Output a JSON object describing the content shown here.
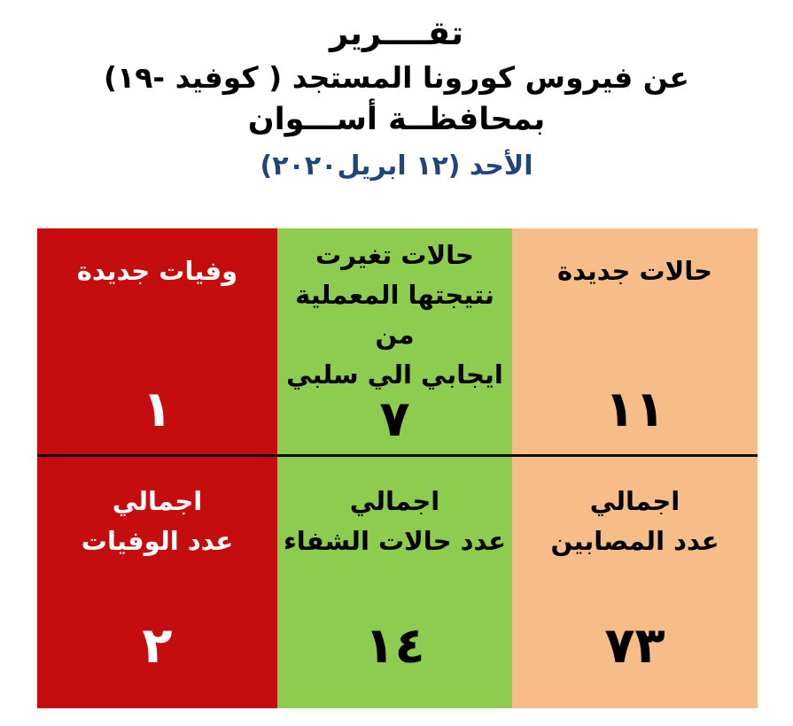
{
  "title": {
    "line1": "تقــــرير",
    "line2": "عن فيروس كورونا المستجد ( كوفيد -١٩)",
    "line3": "بمحافظــة أســـوان",
    "date_line": "الأحد  (١٢ ابريل٢٠٢٠)"
  },
  "colors": {
    "red": "#C50D10",
    "green": "#8ECC4F",
    "peach": "#F6BD88",
    "dateblue": "#20457C",
    "divider": "#0B0B0B",
    "text_on_red": "#FFFFFF"
  },
  "table": {
    "top_row": [
      {
        "key": "new-cases",
        "label": "حالات جديدة",
        "value_arabic": "١١",
        "value": 11,
        "bg": "peach"
      },
      {
        "key": "lab-result-changed",
        "label": "حالات تغيرت\nنتيجتها المعملية من\nايجابي الي سلبي",
        "value_arabic": "٧",
        "value": 7,
        "bg": "green"
      },
      {
        "key": "new-deaths",
        "label": "وفيات جديدة",
        "value_arabic": "١",
        "value": 1,
        "bg": "red"
      }
    ],
    "bottom_row": [
      {
        "key": "total-infected",
        "label": "اجمالي\nعدد المصابين",
        "value_arabic": "٧٣",
        "value": 73,
        "bg": "peach"
      },
      {
        "key": "total-recovered",
        "label": "اجمالي\nعدد حالات الشفاء",
        "value_arabic": "١٤",
        "value": 14,
        "bg": "green"
      },
      {
        "key": "total-deaths",
        "label": "اجمالي\nعدد الوفيات",
        "value_arabic": "٢",
        "value": 2,
        "bg": "red"
      }
    ]
  },
  "chart_data": {
    "type": "table",
    "title": "تقرير عن فيروس كورونا المستجد ( كوفيد -١٩) بمحافظة أسوان",
    "date": "الأحد ١٢ ابريل ٢٠٢٠",
    "metrics": [
      {
        "label": "حالات جديدة",
        "value": 11
      },
      {
        "label": "حالات تغيرت نتيجتها المعملية من ايجابي الي سلبي",
        "value": 7
      },
      {
        "label": "وفيات جديدة",
        "value": 1
      },
      {
        "label": "اجمالي عدد المصابين",
        "value": 73
      },
      {
        "label": "اجمالي عدد حالات الشفاء",
        "value": 14
      },
      {
        "label": "اجمالي عدد الوفيات",
        "value": 2
      }
    ]
  }
}
